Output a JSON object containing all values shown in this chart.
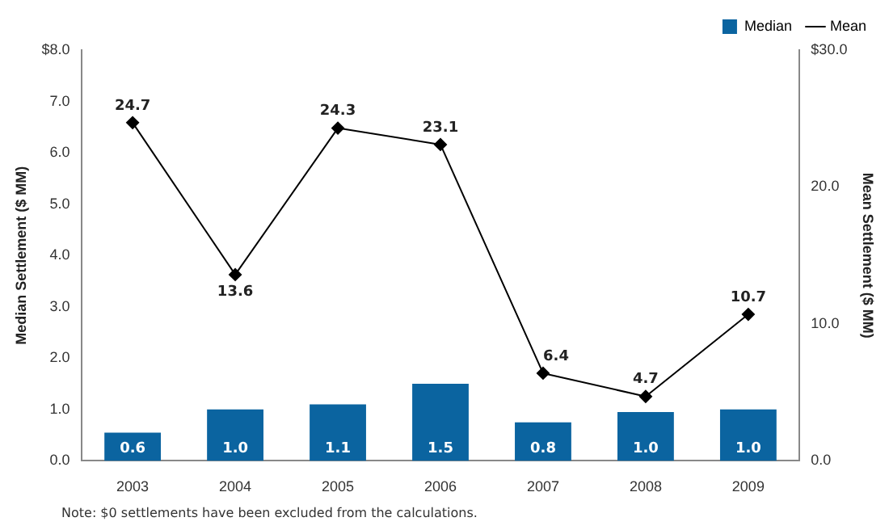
{
  "chart_data": {
    "type": "bar",
    "categories": [
      "2003",
      "2004",
      "2005",
      "2006",
      "2007",
      "2008",
      "2009"
    ],
    "ylabel": "Median Settlement ($ MM)",
    "y2label": "Mean Settlement ($ MM)",
    "ylim": [
      0,
      8
    ],
    "yticks": [
      {
        "value": 0,
        "label": "0.0"
      },
      {
        "value": 1,
        "label": "1.0"
      },
      {
        "value": 2,
        "label": "2.0"
      },
      {
        "value": 3,
        "label": "3.0"
      },
      {
        "value": 4,
        "label": "4.0"
      },
      {
        "value": 5,
        "label": "5.0"
      },
      {
        "value": 6,
        "label": "6.0"
      },
      {
        "value": 7,
        "label": "7.0"
      },
      {
        "value": 8,
        "label": "$8.0"
      }
    ],
    "y2lim": [
      0,
      30
    ],
    "y2ticks": [
      {
        "value": 0,
        "label": "0.0"
      },
      {
        "value": 10,
        "label": "10.0"
      },
      {
        "value": 20,
        "label": "20.0"
      },
      {
        "value": 30,
        "label": "$30.0"
      }
    ],
    "series": [
      {
        "name": "Median",
        "color": "#0b64a0",
        "values": [
          0.55,
          1.0,
          1.1,
          1.5,
          0.75,
          0.95,
          1.0
        ],
        "value_labels": [
          "0.6",
          "1.0",
          "1.1",
          "1.5",
          "0.8",
          "1.0",
          "1.0"
        ]
      },
      {
        "name": "Mean",
        "type": "line",
        "axis": "y2",
        "color": "#000000",
        "marker": "diamond",
        "values": [
          24.7,
          13.6,
          24.3,
          23.1,
          6.4,
          4.7,
          10.7
        ],
        "value_labels": [
          "24.7",
          "13.6",
          "24.3",
          "23.1",
          "6.4",
          "4.7",
          "10.7"
        ]
      }
    ],
    "legend": "top right",
    "grid": false,
    "annotations": [
      "Note: $0 settlements have been excluded from the calculations."
    ]
  }
}
